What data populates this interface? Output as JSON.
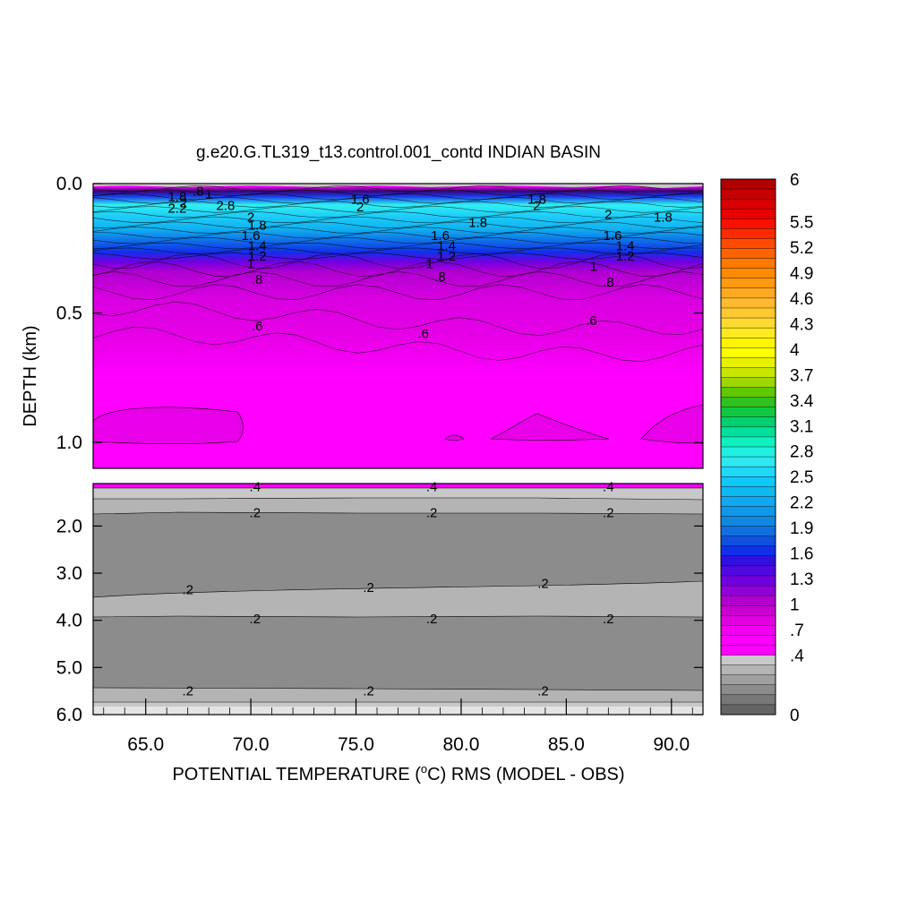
{
  "chart_data": {
    "type": "heatmap",
    "title": "g.e20.G.TL319_t13.control.001_contd INDIAN BASIN",
    "xlabel_prefix": "POTENTIAL TEMPERATURE (",
    "xlabel_degree": "o",
    "xlabel_suffix": "C) RMS (MODEL - OBS)",
    "ylabel": "DEPTH (km)",
    "xlim": [
      62.5,
      91.5
    ],
    "x_ticks": [
      "65.0",
      "70.0",
      "75.0",
      "80.0",
      "85.0",
      "90.0"
    ],
    "x_tick_values": [
      65,
      70,
      75,
      80,
      85,
      90
    ],
    "upper_panel": {
      "ylim": [
        0.0,
        1.1
      ],
      "y_ticks": [
        "0.0",
        "0.5",
        "1.0"
      ],
      "y_tick_values": [
        0.0,
        0.5,
        1.0
      ],
      "contour_labels": [
        {
          "text": "1.8",
          "x": 66.5,
          "y": 0.05
        },
        {
          "text": "2.2",
          "x": 66.5,
          "y": 0.095
        },
        {
          "text": "2",
          "x": 66.8,
          "y": 0.075
        },
        {
          "text": ".8",
          "x": 67.5,
          "y": 0.03
        },
        {
          "text": "1",
          "x": 68.0,
          "y": 0.04
        },
        {
          "text": "2.8",
          "x": 68.8,
          "y": 0.085
        },
        {
          "text": "1.6",
          "x": 75.2,
          "y": 0.06
        },
        {
          "text": "2",
          "x": 75.2,
          "y": 0.09
        },
        {
          "text": "1.8",
          "x": 83.6,
          "y": 0.06
        },
        {
          "text": "2",
          "x": 83.6,
          "y": 0.085
        },
        {
          "text": "2",
          "x": 70.0,
          "y": 0.13
        },
        {
          "text": "1.8",
          "x": 70.3,
          "y": 0.16
        },
        {
          "text": "1.6",
          "x": 70.0,
          "y": 0.2
        },
        {
          "text": "1.4",
          "x": 70.3,
          "y": 0.24
        },
        {
          "text": "1.2",
          "x": 70.3,
          "y": 0.28
        },
        {
          "text": "1",
          "x": 70.0,
          "y": 0.31
        },
        {
          "text": ".8",
          "x": 70.3,
          "y": 0.37
        },
        {
          "text": ".6",
          "x": 70.3,
          "y": 0.55
        },
        {
          "text": "1.8",
          "x": 80.8,
          "y": 0.15
        },
        {
          "text": "1.6",
          "x": 79.0,
          "y": 0.2
        },
        {
          "text": "1.4",
          "x": 79.3,
          "y": 0.24
        },
        {
          "text": "1.2",
          "x": 79.3,
          "y": 0.28
        },
        {
          "text": "1",
          "x": 78.5,
          "y": 0.31
        },
        {
          "text": ".8",
          "x": 79.0,
          "y": 0.36
        },
        {
          "text": ".6",
          "x": 78.2,
          "y": 0.58
        },
        {
          "text": "2",
          "x": 87.0,
          "y": 0.12
        },
        {
          "text": "1.8",
          "x": 89.6,
          "y": 0.13
        },
        {
          "text": "1.6",
          "x": 87.2,
          "y": 0.2
        },
        {
          "text": "1.4",
          "x": 87.8,
          "y": 0.24
        },
        {
          "text": "1.2",
          "x": 87.8,
          "y": 0.28
        },
        {
          "text": "1",
          "x": 86.3,
          "y": 0.32
        },
        {
          "text": ".8",
          "x": 87.0,
          "y": 0.38
        },
        {
          "text": ".6",
          "x": 86.2,
          "y": 0.53
        }
      ]
    },
    "lower_panel": {
      "ylim": [
        1.1,
        6.0
      ],
      "y_ticks": [
        "2.0",
        "3.0",
        "4.0",
        "5.0",
        "6.0"
      ],
      "y_tick_values": [
        2.0,
        3.0,
        4.0,
        5.0,
        6.0
      ],
      "contour_labels": [
        {
          "text": ".4",
          "x": 70.2,
          "y": 1.17
        },
        {
          "text": ".4",
          "x": 78.6,
          "y": 1.17
        },
        {
          "text": ".4",
          "x": 87.0,
          "y": 1.17
        },
        {
          "text": ".2",
          "x": 70.2,
          "y": 1.72
        },
        {
          "text": ".2",
          "x": 78.6,
          "y": 1.72
        },
        {
          "text": ".2",
          "x": 87.0,
          "y": 1.72
        },
        {
          "text": ".2",
          "x": 67.0,
          "y": 3.35
        },
        {
          "text": ".2",
          "x": 75.6,
          "y": 3.3
        },
        {
          "text": ".2",
          "x": 83.9,
          "y": 3.22
        },
        {
          "text": ".2",
          "x": 70.2,
          "y": 3.97
        },
        {
          "text": ".2",
          "x": 78.6,
          "y": 3.97
        },
        {
          "text": ".2",
          "x": 87.0,
          "y": 3.97
        },
        {
          "text": ".2",
          "x": 67.0,
          "y": 5.5
        },
        {
          "text": ".2",
          "x": 75.6,
          "y": 5.5
        },
        {
          "text": ".2",
          "x": 83.9,
          "y": 5.5
        }
      ]
    },
    "colorbar": {
      "labels": [
        "6",
        "5.5",
        "5.2",
        "4.9",
        "4.6",
        "4.3",
        "4",
        "3.7",
        "3.4",
        "3.1",
        "2.8",
        "2.5",
        "2.2",
        "1.9",
        "1.6",
        "1.3",
        "1",
        ".7",
        ".4",
        "0"
      ],
      "label_values": [
        6,
        5.5,
        5.2,
        4.9,
        4.6,
        4.3,
        4.0,
        3.7,
        3.4,
        3.1,
        2.8,
        2.5,
        2.2,
        1.9,
        1.6,
        1.3,
        1.0,
        0.7,
        0.4,
        0
      ],
      "colors_top_to_bottom": [
        "#b00000",
        "#c60000",
        "#d80000",
        "#e80000",
        "#f81000",
        "#ff2a00",
        "#ff4a00",
        "#ff6200",
        "#ff7a00",
        "#ff8a00",
        "#ff9a10",
        "#ffaa20",
        "#ffba30",
        "#ffca30",
        "#ffda30",
        "#ffea20",
        "#fff500",
        "#ffff00",
        "#e8f200",
        "#c8e600",
        "#9ed600",
        "#60c800",
        "#30c020",
        "#10c840",
        "#00d070",
        "#00e09a",
        "#10f0c0",
        "#20f0e0",
        "#30e8f0",
        "#20d8f8",
        "#10c8f8",
        "#10b8f0",
        "#10a8f0",
        "#1098e8",
        "#1088e0",
        "#1070e0",
        "#1050e0",
        "#1030e8",
        "#3010e0",
        "#5008e0",
        "#7000e0",
        "#9000d8",
        "#b000d0",
        "#c800d0",
        "#e000e0",
        "#f000f0",
        "#ff00ff",
        "#ff00ff",
        "#c8c8c8",
        "#b4b4b4",
        "#a0a0a0",
        "#8c8c8c",
        "#787878",
        "#646464"
      ]
    },
    "colors": {
      "magenta": "#ff00ff",
      "purple": "#d000e0",
      "blue": "#1030e8",
      "cyan": "#20d8f8",
      "gray_light": "#c8c8c8",
      "gray_mid": "#b4b4b4",
      "gray_dark": "#8c8c8c"
    }
  }
}
